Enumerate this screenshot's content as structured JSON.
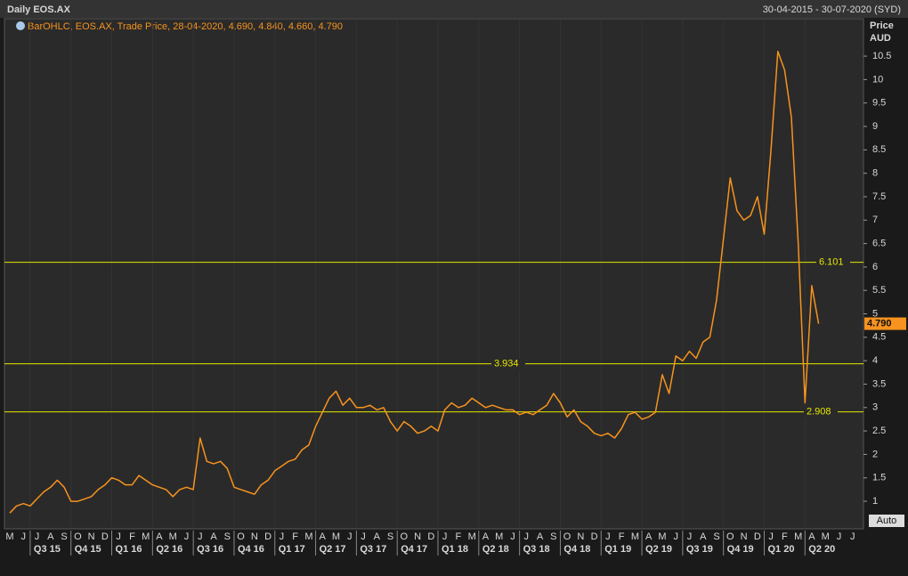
{
  "chart_data": {
    "type": "line",
    "title": "Daily EOS.AX",
    "date_range": "30-04-2015 - 30-07-2020 (SYD)",
    "legend_text": "BarOHLC, EOS.AX, Trade Price, 28-04-2020, 4.690, 4.840, 4.660, 4.790",
    "y_axis_label": [
      "Price",
      "AUD"
    ],
    "categories": [
      "M",
      null,
      "J",
      null,
      "J",
      null,
      "A",
      null,
      "S",
      null,
      "O",
      null,
      "N",
      null,
      "D",
      null,
      "J",
      null,
      "F",
      null,
      "M",
      null,
      "A",
      null,
      "M",
      null,
      "J",
      null,
      "J",
      null,
      "A",
      null,
      "S",
      null,
      "O",
      null,
      "N",
      null,
      "D",
      null,
      "J",
      null,
      "F",
      null,
      "M",
      null,
      "A",
      null,
      "M",
      null,
      "J",
      null,
      "J",
      null,
      "A",
      null,
      "S",
      null,
      "O",
      null,
      "N",
      null,
      "D",
      null,
      "J",
      null,
      "F",
      null,
      "M",
      null,
      "A",
      null,
      "M",
      null,
      "J",
      null,
      "J",
      null,
      "A",
      null,
      "S",
      null,
      "O",
      null,
      "N",
      null,
      "D",
      null,
      "J",
      null,
      "F",
      null,
      "M",
      null,
      "A",
      null,
      "M",
      null,
      "J",
      null,
      "J",
      null,
      "A",
      null,
      "S",
      null,
      "O",
      null,
      "N",
      null,
      "D",
      null,
      "J",
      null,
      "F",
      null,
      "M",
      null,
      "A",
      null,
      "M",
      null,
      "J",
      null,
      "J",
      null
    ],
    "quarters": [
      "Q3 15",
      "Q4 15",
      "Q1 16",
      "Q2 16",
      "Q3 16",
      "Q4 16",
      "Q1 17",
      "Q2 17",
      "Q3 17",
      "Q4 17",
      "Q1 18",
      "Q2 18",
      "Q3 18",
      "Q4 18",
      "Q1 19",
      "Q2 19",
      "Q3 19",
      "Q4 19",
      "Q1 20",
      "Q2 20"
    ],
    "series": [
      {
        "name": "EOS.AX",
        "color": "#f7931e",
        "values": [
          0.75,
          0.9,
          0.95,
          0.9,
          1.05,
          1.2,
          1.3,
          1.45,
          1.3,
          1.0,
          1.0,
          1.05,
          1.1,
          1.25,
          1.35,
          1.5,
          1.45,
          1.35,
          1.35,
          1.55,
          1.45,
          1.35,
          1.3,
          1.25,
          1.1,
          1.25,
          1.3,
          1.25,
          2.35,
          1.85,
          1.8,
          1.85,
          1.7,
          1.3,
          1.25,
          1.2,
          1.15,
          1.35,
          1.45,
          1.65,
          1.75,
          1.85,
          1.9,
          2.1,
          2.2,
          2.6,
          2.9,
          3.2,
          3.35,
          3.05,
          3.2,
          3.0,
          3.0,
          3.05,
          2.95,
          3.0,
          2.7,
          2.5,
          2.7,
          2.6,
          2.45,
          2.5,
          2.6,
          2.5,
          2.95,
          3.1,
          3.0,
          3.05,
          3.2,
          3.1,
          3.0,
          3.05,
          3.0,
          2.95,
          2.95,
          2.85,
          2.9,
          2.85,
          2.95,
          3.05,
          3.3,
          3.1,
          2.8,
          2.95,
          2.7,
          2.6,
          2.45,
          2.4,
          2.45,
          2.35,
          2.55,
          2.85,
          2.9,
          2.75,
          2.8,
          2.9,
          3.7,
          3.3,
          4.1,
          4.0,
          4.2,
          4.05,
          4.4,
          4.5,
          5.3,
          6.6,
          7.9,
          7.2,
          7.0,
          7.1,
          7.5,
          6.7,
          8.5,
          10.6,
          10.2,
          9.2,
          6.5,
          3.1,
          5.6,
          4.79,
          null,
          null,
          null,
          null,
          null,
          null
        ]
      }
    ],
    "ylim": [
      0.45,
      11.28
    ],
    "yticks": [
      1,
      1.5,
      2,
      2.5,
      3,
      3.5,
      4,
      4.5,
      5,
      5.5,
      6,
      6.5,
      7,
      7.5,
      8,
      8.5,
      9,
      9.5,
      10,
      10.5
    ],
    "levels": [
      6.101,
      3.934,
      2.908
    ],
    "level_color": "#e6e600",
    "last_price": {
      "value": 4.79,
      "label": "4.790"
    },
    "auto_button": "Auto"
  }
}
